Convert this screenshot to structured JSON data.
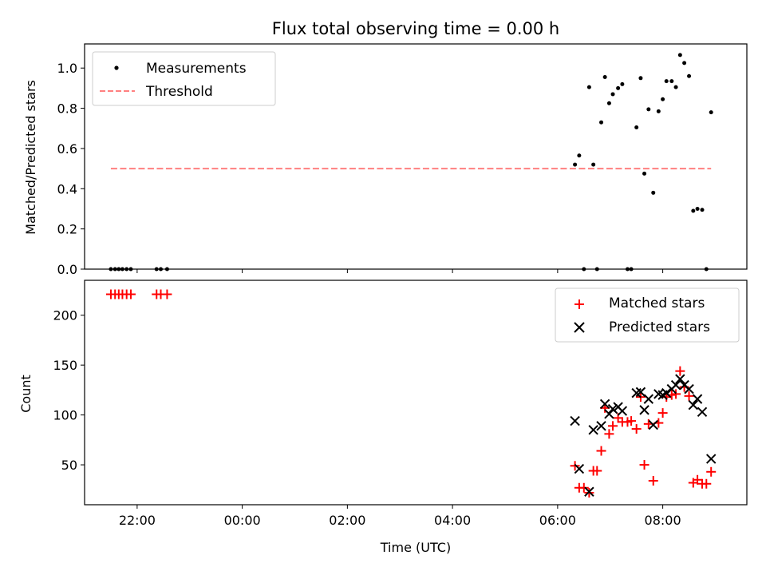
{
  "chart_data": [
    {
      "type": "scatter",
      "title": "Flux total observing time = 0.00 h",
      "xlabel": "",
      "ylabel": "Matched/Predicted stars",
      "x_unit": "hours (UTC, relative to 00:00; negative = previous evening)",
      "xlim": [
        -3.0,
        9.6
      ],
      "ylim": [
        0,
        1.12
      ],
      "yticks": [
        0.0,
        0.2,
        0.4,
        0.6,
        0.8,
        1.0
      ],
      "ytick_labels": [
        "0.0",
        "0.2",
        "0.4",
        "0.6",
        "0.8",
        "1.0"
      ],
      "legend_position": "top-left",
      "series": [
        {
          "name": "Measurements",
          "kind": "point",
          "color": "#000000",
          "x": [
            -2.5,
            -2.42,
            -2.35,
            -2.28,
            -2.2,
            -2.12,
            -1.63,
            -1.55,
            -1.43,
            6.33,
            6.41,
            6.5,
            6.6,
            6.68,
            6.75,
            6.83,
            6.9,
            6.98,
            7.05,
            7.15,
            7.23,
            7.33,
            7.4,
            7.5,
            7.58,
            7.65,
            7.73,
            7.82,
            7.92,
            8.0,
            8.07,
            8.17,
            8.25,
            8.33,
            8.41,
            8.5,
            8.58,
            8.66,
            8.75,
            8.83,
            8.92
          ],
          "y": [
            0.0,
            0.0,
            0.0,
            0.0,
            0.0,
            0.0,
            0.0,
            0.0,
            0.0,
            0.52,
            0.565,
            0.0,
            0.905,
            0.52,
            0.0,
            0.73,
            0.955,
            0.825,
            0.87,
            0.9,
            0.92,
            0.0,
            0.0,
            0.705,
            0.95,
            0.475,
            0.795,
            0.38,
            0.785,
            0.845,
            0.935,
            0.935,
            0.905,
            1.065,
            1.025,
            0.96,
            0.29,
            0.3,
            0.295,
            0.0,
            0.78
          ]
        },
        {
          "name": "Threshold",
          "kind": "dashed-line",
          "color": "#ff8080",
          "x": [
            -2.5,
            8.92
          ],
          "y": [
            0.5,
            0.5
          ]
        }
      ]
    },
    {
      "type": "scatter",
      "title": "",
      "xlabel": "Time (UTC)",
      "ylabel": "Count",
      "x_unit": "hours (UTC, relative to 00:00; negative = previous evening)",
      "xlim": [
        -3.0,
        9.6
      ],
      "ylim": [
        10,
        235
      ],
      "yticks": [
        50,
        100,
        150,
        200
      ],
      "ytick_labels": [
        "50",
        "100",
        "150",
        "200"
      ],
      "xticks": [
        -2,
        0,
        2,
        4,
        6,
        8
      ],
      "xtick_labels": [
        "22:00",
        "00:00",
        "02:00",
        "04:00",
        "06:00",
        "08:00"
      ],
      "legend_position": "top-right",
      "series": [
        {
          "name": "Matched stars",
          "marker": "plus",
          "color": "#ff0000",
          "x": [
            -2.5,
            -2.42,
            -2.35,
            -2.28,
            -2.2,
            -2.12,
            -1.63,
            -1.55,
            -1.43,
            6.33,
            6.41,
            6.5,
            6.6,
            6.68,
            6.75,
            6.83,
            6.9,
            6.98,
            7.05,
            7.15,
            7.23,
            7.33,
            7.4,
            7.5,
            7.58,
            7.65,
            7.73,
            7.82,
            7.92,
            8.0,
            8.07,
            8.17,
            8.25,
            8.33,
            8.41,
            8.5,
            8.58,
            8.66,
            8.75,
            8.83,
            8.92
          ],
          "y": [
            221,
            221,
            221,
            221,
            221,
            221,
            221,
            221,
            221,
            49,
            27,
            27,
            22,
            44,
            44,
            64,
            107,
            81,
            89,
            97,
            93,
            93,
            94,
            86,
            118,
            50,
            91,
            34,
            92,
            102,
            118,
            120,
            121,
            144,
            128,
            119,
            32,
            35,
            31,
            31,
            43
          ]
        },
        {
          "name": "Predicted stars",
          "marker": "x",
          "color": "#000000",
          "x": [
            6.33,
            6.41,
            6.6,
            6.68,
            6.83,
            6.9,
            6.98,
            7.05,
            7.15,
            7.23,
            7.5,
            7.58,
            7.65,
            7.73,
            7.82,
            7.92,
            8.0,
            8.07,
            8.17,
            8.25,
            8.33,
            8.41,
            8.5,
            8.58,
            8.66,
            8.75,
            8.92
          ],
          "y": [
            94,
            46,
            23,
            85,
            89,
            111,
            101,
            106,
            108,
            104,
            122,
            123,
            105,
            116,
            90,
            121,
            120,
            122,
            126,
            130,
            136,
            130,
            126,
            110,
            116,
            103,
            56
          ]
        }
      ]
    }
  ]
}
